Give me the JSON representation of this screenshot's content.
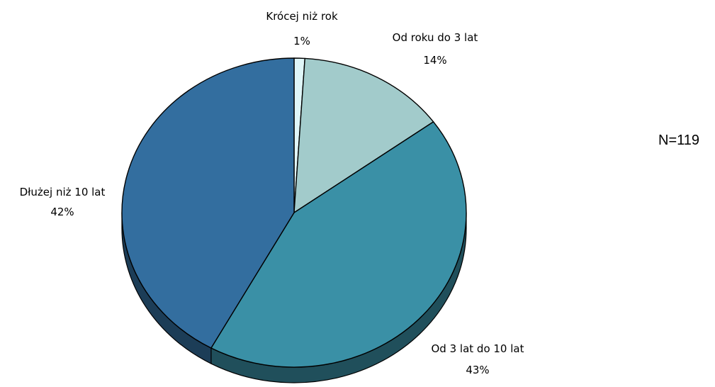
{
  "chart_data": {
    "type": "pie",
    "title": "",
    "note": "N=119",
    "slices": [
      {
        "label": "Krócej niż rok",
        "value": 1,
        "value_label": "1%",
        "color": "#e0f6f8"
      },
      {
        "label": "Od roku do 3 lat",
        "value": 14,
        "value_label": "14%",
        "color": "#a2cbcb"
      },
      {
        "label": "Od 3 lat do 10 lat",
        "value": 43,
        "value_label": "43%",
        "color": "#3a90a6"
      },
      {
        "label": "Dłużej niż 10 lat",
        "value": 42,
        "value_label": "42%",
        "color": "#336e9f"
      }
    ]
  }
}
